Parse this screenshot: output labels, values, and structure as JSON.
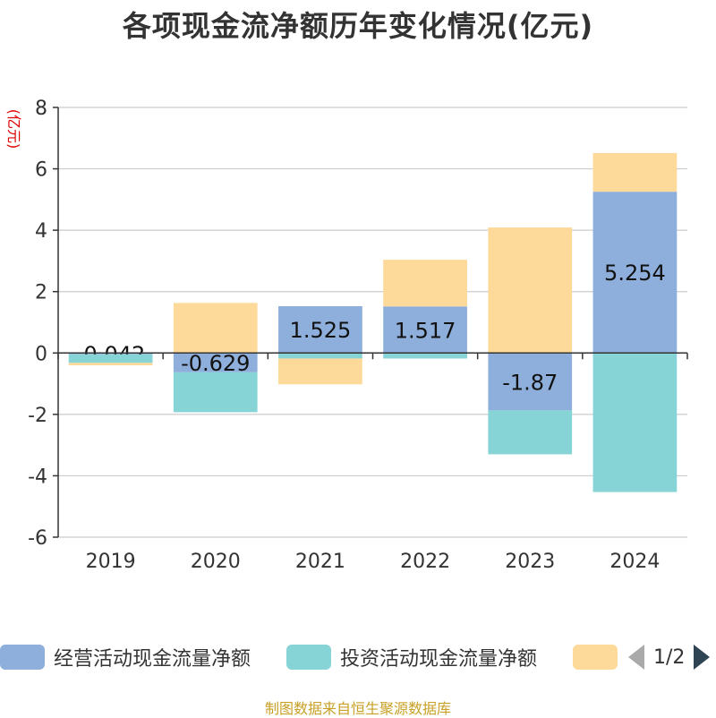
{
  "chart_data": {
    "type": "bar",
    "stacked": true,
    "title": "各项现金流净额历年变化情况(亿元)",
    "ylabel": "(亿元)",
    "xlabel": "",
    "ylim": [
      -6,
      8
    ],
    "yticks": [
      -6,
      -4,
      -2,
      0,
      2,
      4,
      6,
      8
    ],
    "grid": true,
    "categories": [
      "2019",
      "2020",
      "2021",
      "2022",
      "2023",
      "2024"
    ],
    "series": [
      {
        "name": "经营活动现金流量净额",
        "color": "#8eaedb",
        "values": [
          -0.042,
          -0.629,
          1.525,
          1.517,
          -1.87,
          5.254
        ],
        "show_labels": true
      },
      {
        "name": "投资活动现金流量净额",
        "color": "#86d4d6",
        "values": [
          -0.28,
          -1.3,
          -0.18,
          -0.18,
          -1.43,
          -4.53
        ],
        "show_labels": false
      },
      {
        "name": "",
        "color": "#fdd99a",
        "values": [
          -0.08,
          1.63,
          -0.84,
          1.52,
          4.09,
          1.26
        ],
        "show_labels": false
      }
    ],
    "legend_position": "bottom"
  },
  "legend": {
    "page_text": "1/2"
  },
  "footer": {
    "source": "制图数据来自恒生聚源数据库"
  }
}
